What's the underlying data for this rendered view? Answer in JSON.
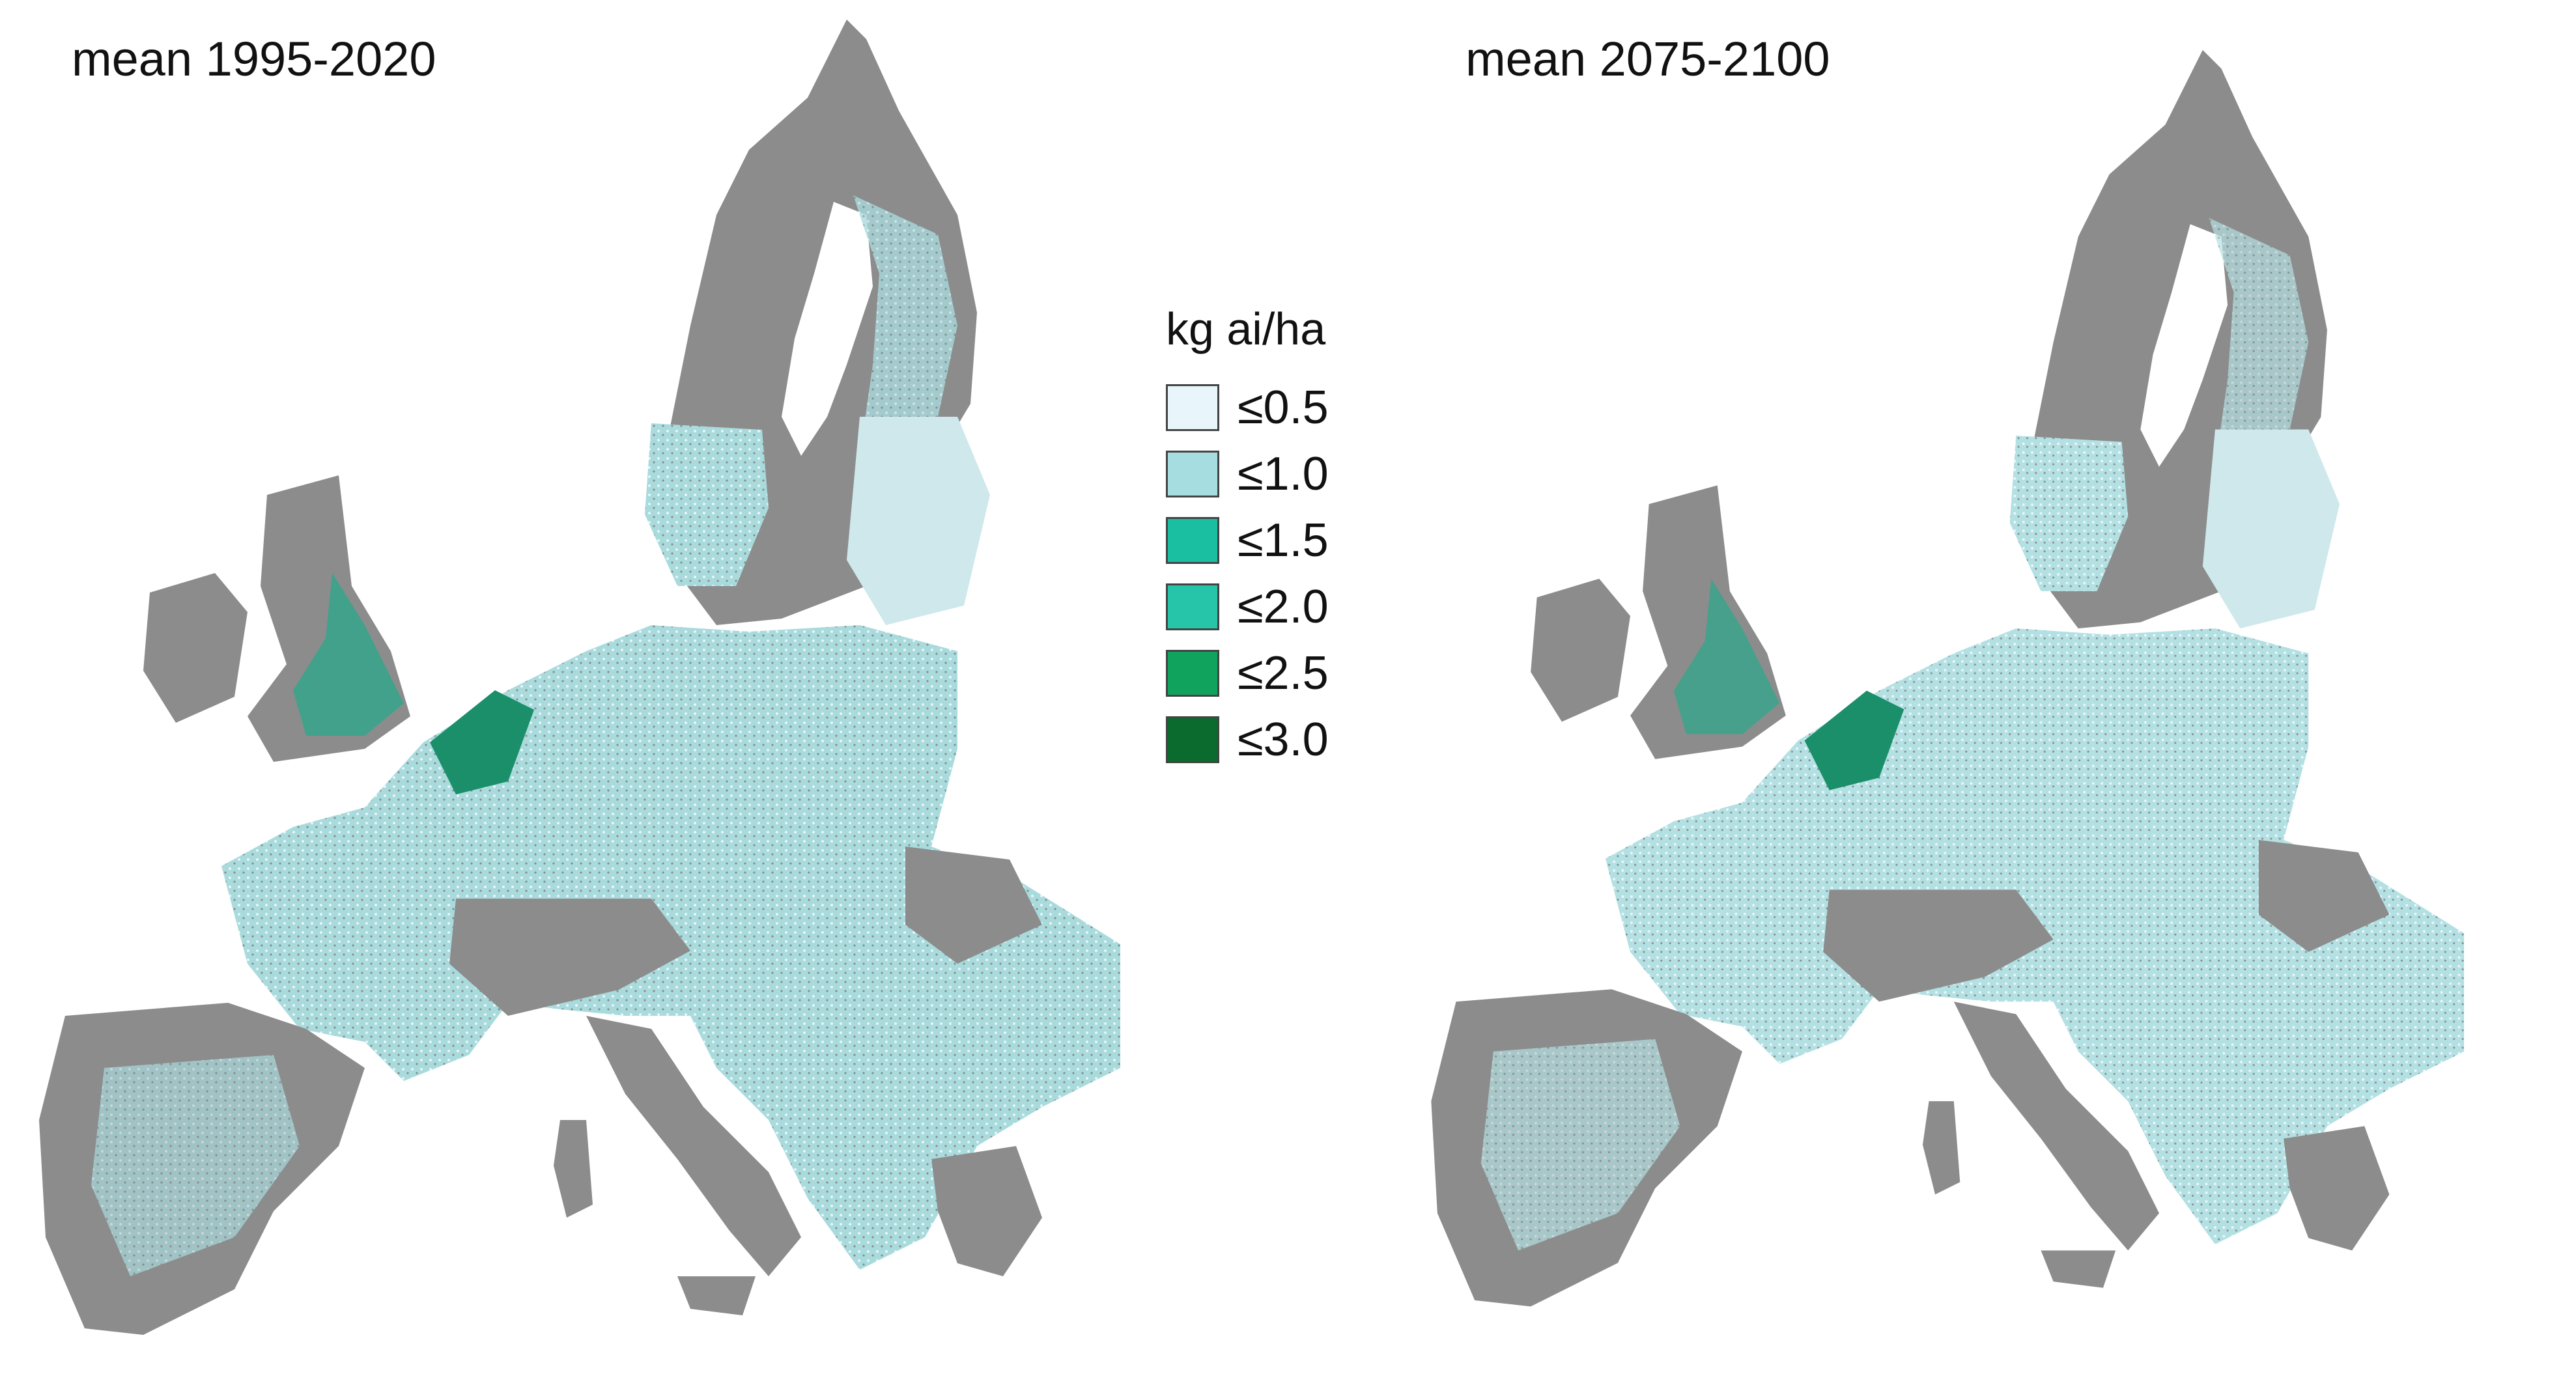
{
  "maps": [
    {
      "title": "mean 1995-2020"
    },
    {
      "title": "mean 2075-2100"
    }
  ],
  "legend": {
    "title": "kg ai/ha",
    "items": [
      {
        "label": "≤0.5",
        "color": "#e8f5fb"
      },
      {
        "label": "≤1.0",
        "color": "#a6dde0"
      },
      {
        "label": "≤1.5",
        "color": "#1abfa2"
      },
      {
        "label": "≤2.0",
        "color": "#26c4a8"
      },
      {
        "label": "≤2.5",
        "color": "#0fa35e"
      },
      {
        "label": "≤3.0",
        "color": "#0b6b2f"
      }
    ]
  },
  "colors": {
    "land_no_data": "#8c8c8c",
    "sea": "#ffffff"
  }
}
